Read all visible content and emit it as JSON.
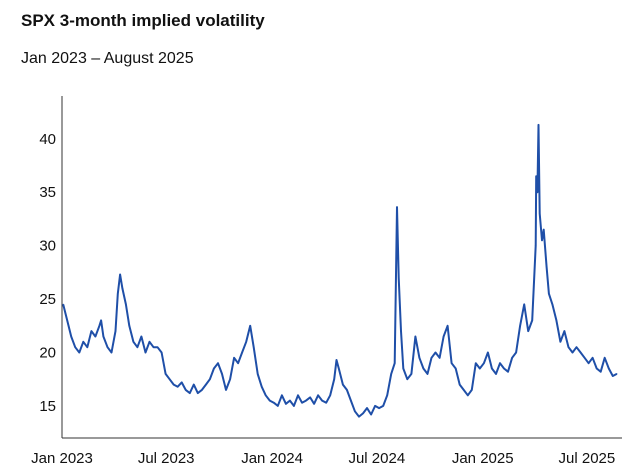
{
  "chart_data": {
    "type": "line",
    "title": "SPX 3-month implied volatility",
    "subtitle": "Jan 2023 – August 2025",
    "xlabel": "",
    "ylabel": "",
    "ylim": [
      12,
      44
    ],
    "y_ticks": [
      15,
      20,
      25,
      30,
      35,
      40
    ],
    "x_ticks": [
      "Jan 2023",
      "Jul 2023",
      "Jan 2024",
      "Jul 2024",
      "Jan 2025",
      "Jul 2025"
    ],
    "x_tick_dates": [
      "2023-01-01",
      "2023-07-01",
      "2024-01-01",
      "2024-07-01",
      "2025-01-01",
      "2025-07-01"
    ],
    "x_range": [
      "2023-01-01",
      "2025-08-31"
    ],
    "grid": false,
    "legend": "none",
    "series": [
      {
        "color": "#1f4fa8",
        "points": [
          [
            "2023-01-03",
            24.5
          ],
          [
            "2023-01-10",
            23.0
          ],
          [
            "2023-01-17",
            21.5
          ],
          [
            "2023-01-24",
            20.5
          ],
          [
            "2023-01-31",
            20.0
          ],
          [
            "2023-02-07",
            21.0
          ],
          [
            "2023-02-14",
            20.5
          ],
          [
            "2023-02-21",
            22.0
          ],
          [
            "2023-02-28",
            21.5
          ],
          [
            "2023-03-07",
            22.5
          ],
          [
            "2023-03-10",
            23.0
          ],
          [
            "2023-03-14",
            21.5
          ],
          [
            "2023-03-21",
            20.5
          ],
          [
            "2023-03-28",
            20.0
          ],
          [
            "2023-04-04",
            22.0
          ],
          [
            "2023-04-08",
            25.5
          ],
          [
            "2023-04-12",
            27.3
          ],
          [
            "2023-04-16",
            26.0
          ],
          [
            "2023-04-22",
            24.5
          ],
          [
            "2023-04-28",
            22.5
          ],
          [
            "2023-05-05",
            21.0
          ],
          [
            "2023-05-12",
            20.5
          ],
          [
            "2023-05-19",
            21.5
          ],
          [
            "2023-05-26",
            20.0
          ],
          [
            "2023-06-02",
            21.0
          ],
          [
            "2023-06-09",
            20.5
          ],
          [
            "2023-06-16",
            20.5
          ],
          [
            "2023-06-23",
            20.0
          ],
          [
            "2023-06-30",
            18.0
          ],
          [
            "2023-07-07",
            17.5
          ],
          [
            "2023-07-14",
            17.0
          ],
          [
            "2023-07-21",
            16.8
          ],
          [
            "2023-07-28",
            17.2
          ],
          [
            "2023-08-04",
            16.5
          ],
          [
            "2023-08-11",
            16.2
          ],
          [
            "2023-08-18",
            17.0
          ],
          [
            "2023-08-25",
            16.2
          ],
          [
            "2023-09-01",
            16.5
          ],
          [
            "2023-09-08",
            17.0
          ],
          [
            "2023-09-15",
            17.5
          ],
          [
            "2023-09-22",
            18.5
          ],
          [
            "2023-09-29",
            19.0
          ],
          [
            "2023-10-06",
            18.0
          ],
          [
            "2023-10-13",
            16.5
          ],
          [
            "2023-10-20",
            17.5
          ],
          [
            "2023-10-27",
            19.5
          ],
          [
            "2023-11-03",
            19.0
          ],
          [
            "2023-11-10",
            20.0
          ],
          [
            "2023-11-17",
            21.0
          ],
          [
            "2023-11-24",
            22.5
          ],
          [
            "2023-11-30",
            20.5
          ],
          [
            "2023-12-07",
            18.0
          ],
          [
            "2023-12-14",
            16.8
          ],
          [
            "2023-12-21",
            16.0
          ],
          [
            "2023-12-28",
            15.5
          ],
          [
            "2024-01-04",
            15.3
          ],
          [
            "2024-01-11",
            15.0
          ],
          [
            "2024-01-18",
            16.0
          ],
          [
            "2024-01-25",
            15.2
          ],
          [
            "2024-02-01",
            15.5
          ],
          [
            "2024-02-08",
            15.0
          ],
          [
            "2024-02-15",
            16.0
          ],
          [
            "2024-02-22",
            15.3
          ],
          [
            "2024-02-29",
            15.5
          ],
          [
            "2024-03-07",
            15.8
          ],
          [
            "2024-03-14",
            15.2
          ],
          [
            "2024-03-21",
            16.0
          ],
          [
            "2024-03-28",
            15.5
          ],
          [
            "2024-04-04",
            15.3
          ],
          [
            "2024-04-11",
            16.0
          ],
          [
            "2024-04-18",
            17.5
          ],
          [
            "2024-04-22",
            19.3
          ],
          [
            "2024-04-26",
            18.5
          ],
          [
            "2024-05-03",
            17.0
          ],
          [
            "2024-05-10",
            16.5
          ],
          [
            "2024-05-17",
            15.5
          ],
          [
            "2024-05-24",
            14.5
          ],
          [
            "2024-05-31",
            14.0
          ],
          [
            "2024-06-07",
            14.3
          ],
          [
            "2024-06-14",
            14.8
          ],
          [
            "2024-06-21",
            14.2
          ],
          [
            "2024-06-28",
            15.0
          ],
          [
            "2024-07-05",
            14.8
          ],
          [
            "2024-07-12",
            15.0
          ],
          [
            "2024-07-19",
            16.0
          ],
          [
            "2024-07-26",
            18.0
          ],
          [
            "2024-08-01",
            19.0
          ],
          [
            "2024-08-05",
            33.6
          ],
          [
            "2024-08-08",
            27.0
          ],
          [
            "2024-08-12",
            22.0
          ],
          [
            "2024-08-16",
            18.5
          ],
          [
            "2024-08-23",
            17.5
          ],
          [
            "2024-08-30",
            18.0
          ],
          [
            "2024-09-06",
            21.5
          ],
          [
            "2024-09-13",
            19.5
          ],
          [
            "2024-09-20",
            18.5
          ],
          [
            "2024-09-27",
            18.0
          ],
          [
            "2024-10-04",
            19.5
          ],
          [
            "2024-10-11",
            20.0
          ],
          [
            "2024-10-18",
            19.5
          ],
          [
            "2024-10-25",
            21.5
          ],
          [
            "2024-11-01",
            22.5
          ],
          [
            "2024-11-08",
            19.0
          ],
          [
            "2024-11-15",
            18.5
          ],
          [
            "2024-11-22",
            17.0
          ],
          [
            "2024-11-29",
            16.5
          ],
          [
            "2024-12-06",
            16.0
          ],
          [
            "2024-12-13",
            16.5
          ],
          [
            "2024-12-20",
            19.0
          ],
          [
            "2024-12-27",
            18.5
          ],
          [
            "2025-01-03",
            19.0
          ],
          [
            "2025-01-10",
            20.0
          ],
          [
            "2025-01-17",
            18.5
          ],
          [
            "2025-01-24",
            18.0
          ],
          [
            "2025-01-31",
            19.0
          ],
          [
            "2025-02-07",
            18.5
          ],
          [
            "2025-02-14",
            18.2
          ],
          [
            "2025-02-21",
            19.5
          ],
          [
            "2025-02-28",
            20.0
          ],
          [
            "2025-03-07",
            22.5
          ],
          [
            "2025-03-14",
            24.5
          ],
          [
            "2025-03-21",
            22.0
          ],
          [
            "2025-03-28",
            23.0
          ],
          [
            "2025-04-03",
            30.0
          ],
          [
            "2025-04-04",
            36.5
          ],
          [
            "2025-04-06",
            35.0
          ],
          [
            "2025-04-08",
            41.3
          ],
          [
            "2025-04-10",
            33.0
          ],
          [
            "2025-04-14",
            30.5
          ],
          [
            "2025-04-17",
            31.5
          ],
          [
            "2025-04-22",
            28.0
          ],
          [
            "2025-04-26",
            25.5
          ],
          [
            "2025-05-02",
            24.5
          ],
          [
            "2025-05-09",
            23.0
          ],
          [
            "2025-05-16",
            21.0
          ],
          [
            "2025-05-23",
            22.0
          ],
          [
            "2025-05-30",
            20.5
          ],
          [
            "2025-06-06",
            20.0
          ],
          [
            "2025-06-13",
            20.5
          ],
          [
            "2025-06-20",
            20.0
          ],
          [
            "2025-06-27",
            19.5
          ],
          [
            "2025-07-04",
            19.0
          ],
          [
            "2025-07-11",
            19.5
          ],
          [
            "2025-07-18",
            18.5
          ],
          [
            "2025-07-25",
            18.2
          ],
          [
            "2025-08-01",
            19.5
          ],
          [
            "2025-08-08",
            18.5
          ],
          [
            "2025-08-15",
            17.8
          ],
          [
            "2025-08-22",
            18.0
          ]
        ]
      }
    ]
  }
}
